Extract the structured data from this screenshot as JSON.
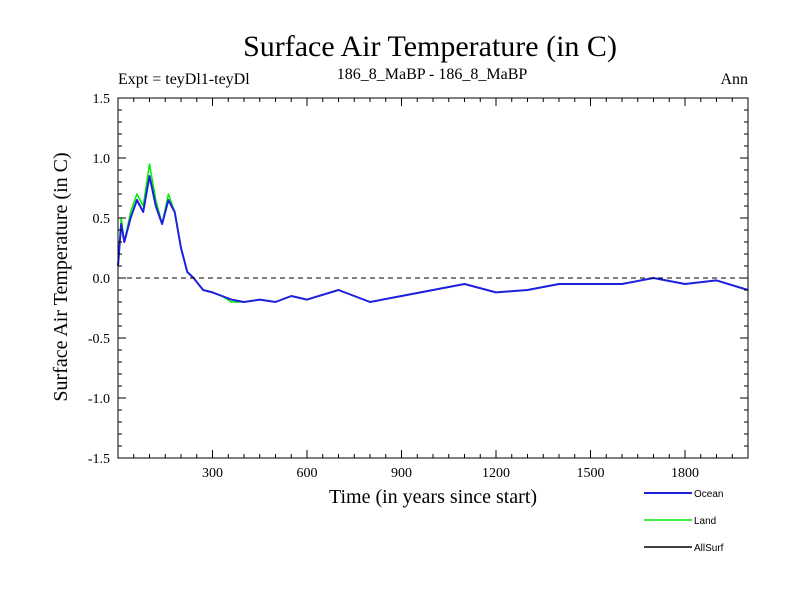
{
  "colors": {
    "ocean": "#1f1fe0",
    "land": "#00ee00",
    "allsurf": "#000000",
    "zero_line": "#000000"
  },
  "chart_data": {
    "type": "line",
    "title": "Surface Air Temperature (in C)",
    "subtitle_left": "Expt = teyDl1-teyDl",
    "subtitle_center": "186_8_MaBP - 186_8_MaBP",
    "subtitle_right": "Ann",
    "xlabel": "Time (in years since start)",
    "ylabel": "Surface Air Temperature (in C)",
    "xlim": [
      0,
      2000
    ],
    "ylim": [
      -1.5,
      1.5
    ],
    "xticks": [
      300,
      600,
      900,
      1200,
      1500,
      1800
    ],
    "xtick_labels": [
      "300",
      "600",
      "900",
      "1200",
      "1500",
      "1800"
    ],
    "yticks": [
      -1.5,
      -1.0,
      -0.5,
      0.0,
      0.5,
      1.0,
      1.5
    ],
    "ytick_labels": [
      "-1.5",
      "-1.0",
      "-0.5",
      "0.0",
      "0.5",
      "1.0",
      "1.5"
    ],
    "reference_line_y": 0.0,
    "legend_position": "bottom-right",
    "series": [
      {
        "name": "Ocean",
        "x": [
          0,
          10,
          20,
          40,
          60,
          80,
          100,
          120,
          140,
          160,
          180,
          200,
          220,
          240,
          270,
          300,
          330,
          360,
          400,
          450,
          500,
          550,
          600,
          700,
          800,
          900,
          1000,
          1100,
          1200,
          1300,
          1400,
          1500,
          1600,
          1700,
          1800,
          1900,
          2000
        ],
        "values": [
          0.1,
          0.45,
          0.3,
          0.5,
          0.65,
          0.55,
          0.85,
          0.6,
          0.45,
          0.65,
          0.55,
          0.25,
          0.05,
          0.0,
          -0.1,
          -0.12,
          -0.15,
          -0.18,
          -0.2,
          -0.18,
          -0.2,
          -0.15,
          -0.18,
          -0.1,
          -0.2,
          -0.15,
          -0.1,
          -0.05,
          -0.12,
          -0.1,
          -0.05,
          -0.05,
          -0.05,
          0.0,
          -0.05,
          -0.02,
          -0.1
        ]
      },
      {
        "name": "Land",
        "x": [
          0,
          10,
          20,
          40,
          60,
          80,
          100,
          120,
          140,
          160,
          180,
          200,
          220,
          240,
          270,
          300,
          330,
          360,
          400,
          450,
          500,
          550,
          600,
          700,
          800,
          900,
          1000,
          1100,
          1200,
          1300,
          1400,
          1500,
          1600,
          1700,
          1800,
          1900,
          2000
        ],
        "values": [
          0.1,
          0.5,
          0.3,
          0.55,
          0.7,
          0.6,
          0.95,
          0.65,
          0.45,
          0.7,
          0.55,
          0.25,
          0.05,
          0.0,
          -0.1,
          -0.12,
          -0.15,
          -0.2,
          -0.2,
          -0.18,
          -0.2,
          -0.15,
          -0.18,
          -0.1,
          -0.2,
          -0.15,
          -0.1,
          -0.05,
          -0.12,
          -0.1,
          -0.05,
          -0.05,
          -0.05,
          0.0,
          -0.05,
          -0.02,
          -0.1
        ]
      },
      {
        "name": "AllSurf",
        "x": [],
        "values": []
      }
    ]
  }
}
